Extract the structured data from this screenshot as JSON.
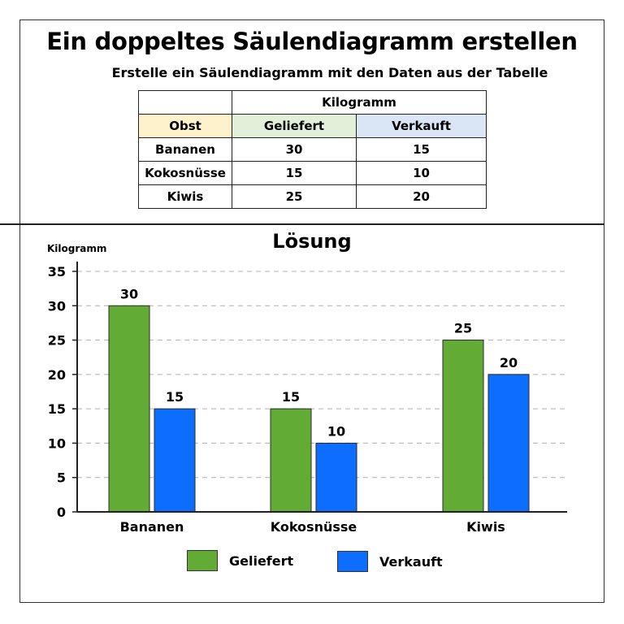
{
  "title": "Ein doppeltes Säulendiagramm erstellen",
  "subtitle": "Erstelle ein Säulendiagramm mit den Daten aus der Tabelle",
  "table": {
    "group_header": "Kilogramm",
    "headers": [
      "Obst",
      "Geliefert",
      "Verkauft"
    ],
    "rows": [
      [
        "Bananen",
        "30",
        "15"
      ],
      [
        "Kokosnüsse",
        "15",
        "10"
      ],
      [
        "Kiwis",
        "25",
        "20"
      ]
    ]
  },
  "solution_title": "Lösung",
  "colors": {
    "geliefert": "#62ab34",
    "verkauft": "#0d6dff",
    "obst_header": "#fdf2cc",
    "geliefert_header": "#e2f0d9",
    "verkauft_header": "#dae6f6"
  },
  "chart_data": {
    "type": "bar",
    "title": "Lösung",
    "ylabel": "Kilogramm",
    "xlabel": "",
    "categories": [
      "Bananen",
      "Kokosnüsse",
      "Kiwis"
    ],
    "series": [
      {
        "name": "Geliefert",
        "values": [
          30,
          15,
          25
        ]
      },
      {
        "name": "Verkauft",
        "values": [
          15,
          10,
          20
        ]
      }
    ],
    "ylim": [
      0,
      35
    ],
    "yticks": [
      0,
      5,
      10,
      15,
      20,
      25,
      30,
      35
    ],
    "grid": "dashed horizontal",
    "legend": "bottom",
    "data_labels": true
  }
}
